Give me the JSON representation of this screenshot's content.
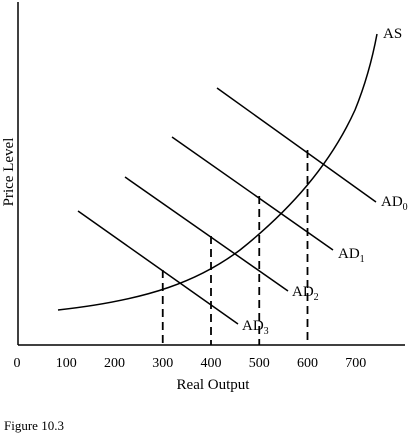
{
  "chart_data": {
    "type": "line",
    "xlabel": "Real Output",
    "ylabel": "Price Level",
    "origin_label": "0",
    "x_ticks": [
      "100",
      "200",
      "300",
      "400",
      "500",
      "600",
      "700"
    ],
    "xlim": [
      0,
      780
    ],
    "grid": false,
    "caption": "Figure 10.3",
    "aggregate_supply": {
      "name": "AS",
      "x": [
        80,
        200,
        300,
        400,
        500,
        600,
        700,
        745
      ]
    },
    "aggregate_demand": [
      {
        "name": "AD",
        "subscript": "0",
        "equilibrium_output": 600
      },
      {
        "name": "AD",
        "subscript": "1",
        "equilibrium_output": 500
      },
      {
        "name": "AD",
        "subscript": "2",
        "equilibrium_output": 400
      },
      {
        "name": "AD",
        "subscript": "3",
        "equilibrium_output": 300
      }
    ]
  }
}
